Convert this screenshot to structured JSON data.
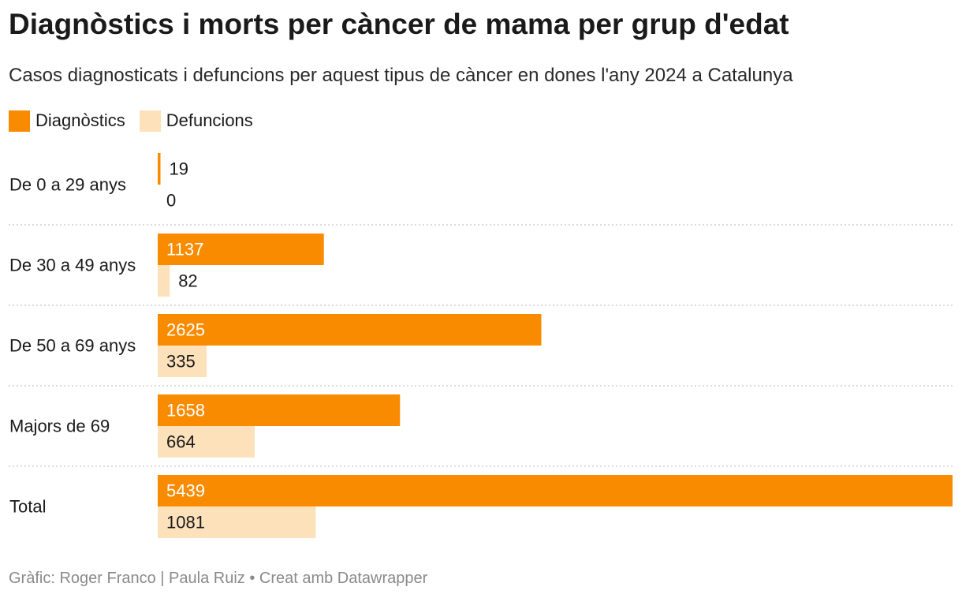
{
  "chart_data": {
    "type": "bar",
    "orientation": "horizontal",
    "title": "Diagnòstics i morts per càncer de mama per grup d'edat",
    "subtitle": "Casos diagnosticats i defuncions per aquest tipus de càncer en dones l'any 2024 a Catalunya",
    "categories": [
      "De 0 a 29 anys",
      "De 30 a 49 anys",
      "De 50 a 69 anys",
      "Majors de 69",
      "Total"
    ],
    "series": [
      {
        "name": "Diagnòstics",
        "color": "#f98b00",
        "values": [
          19,
          1137,
          2625,
          1658,
          5439
        ]
      },
      {
        "name": "Defuncions",
        "color": "#fde1bb",
        "values": [
          0,
          82,
          335,
          664,
          1081
        ]
      }
    ],
    "xlim": [
      0,
      5439
    ],
    "legend_position": "top-left",
    "grid": false,
    "footer": "Gràfic: Roger Franco | Paula Ruiz • Creat amb Datawrapper"
  }
}
